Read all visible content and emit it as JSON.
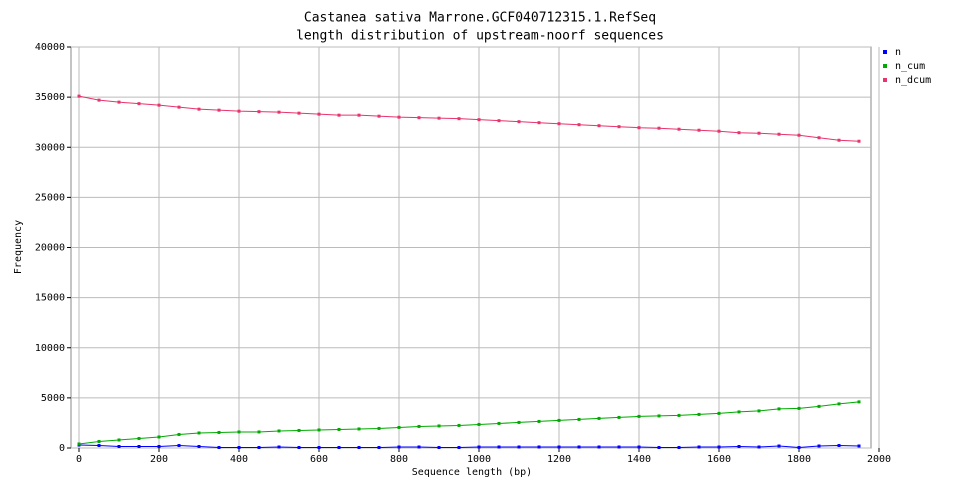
{
  "chart_data": {
    "type": "line",
    "title": "Castanea sativa Marrone.GCF040712315.1.RefSeq",
    "subtitle": "length distribution of upstream-noorf sequences",
    "xlabel": "Sequence length (bp)",
    "ylabel": "Frequency",
    "x": [
      0,
      50,
      100,
      150,
      200,
      250,
      300,
      350,
      400,
      450,
      500,
      550,
      600,
      650,
      700,
      750,
      800,
      850,
      900,
      950,
      1000,
      1050,
      1100,
      1150,
      1200,
      1250,
      1300,
      1350,
      1400,
      1450,
      1500,
      1550,
      1600,
      1650,
      1700,
      1750,
      1800,
      1850,
      1900,
      1950
    ],
    "series": [
      {
        "name": "n",
        "color": "#0000ff",
        "values": [
          300,
          250,
          150,
          150,
          150,
          250,
          150,
          50,
          50,
          50,
          100,
          50,
          50,
          50,
          50,
          50,
          100,
          100,
          50,
          50,
          100,
          100,
          100,
          100,
          100,
          100,
          100,
          100,
          100,
          50,
          50,
          100,
          100,
          150,
          100,
          200,
          50,
          200,
          250,
          200
        ]
      },
      {
        "name": "n_cum",
        "color": "#00aa00",
        "values": [
          400,
          650,
          800,
          950,
          1100,
          1350,
          1500,
          1550,
          1600,
          1600,
          1700,
          1750,
          1800,
          1850,
          1900,
          1950,
          2050,
          2150,
          2200,
          2250,
          2350,
          2450,
          2550,
          2650,
          2750,
          2850,
          2950,
          3050,
          3150,
          3200,
          3250,
          3350,
          3450,
          3600,
          3700,
          3900,
          3950,
          4150,
          4400,
          4600
        ]
      },
      {
        "name": "n_dcum",
        "color": "#e8336d",
        "values": [
          35100,
          34700,
          34500,
          34350,
          34200,
          34000,
          33800,
          33700,
          33600,
          33550,
          33500,
          33400,
          33300,
          33200,
          33200,
          33100,
          33000,
          32950,
          32900,
          32850,
          32750,
          32650,
          32550,
          32450,
          32350,
          32250,
          32150,
          32050,
          31950,
          31900,
          31800,
          31700,
          31600,
          31450,
          31400,
          31300,
          31200,
          30950,
          30700,
          30600
        ]
      }
    ],
    "xlim": [
      -20,
      1980
    ],
    "ylim": [
      0,
      40000
    ],
    "xticks": [
      0,
      200,
      400,
      600,
      800,
      1000,
      1200,
      1400,
      1600,
      1800,
      2000
    ],
    "yticks": [
      0,
      5000,
      10000,
      15000,
      20000,
      25000,
      30000,
      35000,
      40000
    ],
    "grid": true,
    "legend": "right"
  }
}
